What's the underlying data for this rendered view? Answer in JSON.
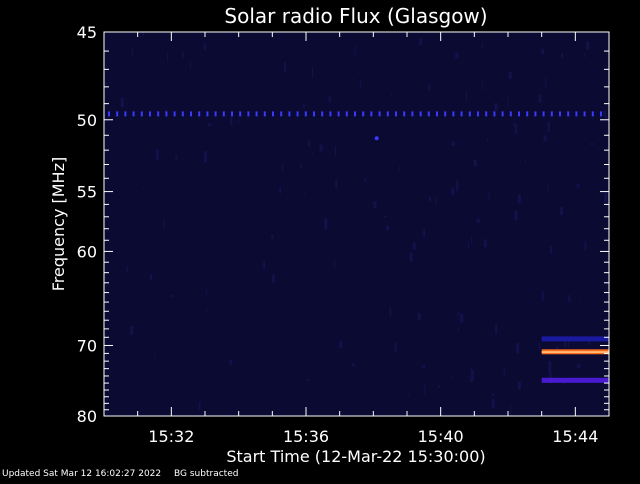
{
  "chart_data": {
    "type": "heatmap",
    "title": "Solar radio Flux (Glasgow)",
    "xlabel": "Start Time (12-Mar-22 15:30:00)",
    "ylabel": "Frequency [MHz]",
    "x_ticks": [
      "15:32",
      "15:36",
      "15:40",
      "15:44"
    ],
    "x_tick_minutes": [
      2,
      6,
      10,
      14
    ],
    "x_range_minutes": [
      0,
      15
    ],
    "y_ticks": [
      45,
      50,
      55,
      60,
      70,
      80
    ],
    "y_range": [
      45,
      80
    ],
    "y_scale": "reciprocal",
    "background_color": "#0a0a33",
    "features": [
      {
        "kind": "dotted-line",
        "freq_mhz": 49.6,
        "t_start_min": 0,
        "t_end_min": 15,
        "color": "#3a3aff"
      },
      {
        "kind": "point",
        "freq_mhz": 51.2,
        "t_min": 8.1,
        "color": "#3a3aff"
      },
      {
        "kind": "band",
        "freq_mhz": 69.2,
        "t_start_min": 13.0,
        "t_end_min": 15,
        "color": "#1a1aa0"
      },
      {
        "kind": "band",
        "freq_mhz": 70.8,
        "t_start_min": 13.0,
        "t_end_min": 15,
        "color": "#ff6a1a"
      },
      {
        "kind": "band",
        "freq_mhz": 74.6,
        "t_start_min": 13.0,
        "t_end_min": 15,
        "color": "#4a1ad0"
      }
    ]
  },
  "footer": {
    "updated": "Updated Sat Mar 12 16:02:27 2022",
    "note": "BG subtracted"
  }
}
